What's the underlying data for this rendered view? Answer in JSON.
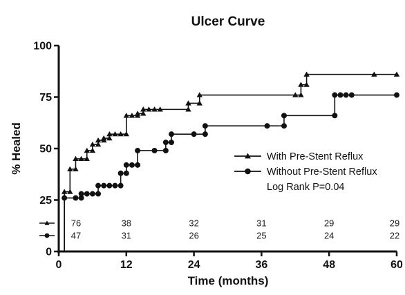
{
  "chart_data": {
    "type": "line",
    "title": "Ulcer Curve",
    "xlabel": "Time (months)",
    "ylabel": "% Healed",
    "xlim": [
      0,
      60
    ],
    "ylim": [
      0,
      100
    ],
    "x_ticks": [
      0,
      12,
      24,
      36,
      48,
      60
    ],
    "y_ticks": [
      0,
      25,
      50,
      75,
      100
    ],
    "grid": false,
    "legend_position": "right",
    "annotation": "Log Rank P=0.04",
    "series": [
      {
        "name": "With Pre-Stent Reflux",
        "marker": "triangle",
        "color": "#111111",
        "points": [
          [
            0,
            0
          ],
          [
            1,
            0
          ],
          [
            1,
            29
          ],
          [
            2,
            29
          ],
          [
            2,
            40
          ],
          [
            3,
            40
          ],
          [
            3,
            45
          ],
          [
            4,
            45
          ],
          [
            5,
            45
          ],
          [
            5,
            49
          ],
          [
            6,
            49
          ],
          [
            6,
            52
          ],
          [
            7,
            52
          ],
          [
            7,
            54
          ],
          [
            8,
            54
          ],
          [
            8,
            55
          ],
          [
            9,
            55
          ],
          [
            9,
            57
          ],
          [
            10,
            57
          ],
          [
            11,
            57
          ],
          [
            12,
            57
          ],
          [
            12,
            66
          ],
          [
            13,
            66
          ],
          [
            14,
            66
          ],
          [
            14,
            67
          ],
          [
            15,
            67
          ],
          [
            15,
            69
          ],
          [
            16,
            69
          ],
          [
            17,
            69
          ],
          [
            18,
            69
          ],
          [
            23,
            69
          ],
          [
            23,
            72
          ],
          [
            25,
            72
          ],
          [
            25,
            76
          ],
          [
            42,
            76
          ],
          [
            43,
            76
          ],
          [
            43,
            81
          ],
          [
            44,
            81
          ],
          [
            44,
            86
          ],
          [
            56,
            86
          ],
          [
            60,
            86
          ]
        ]
      },
      {
        "name": "Without Pre-Stent Reflux",
        "marker": "circle",
        "color": "#111111",
        "points": [
          [
            0,
            0
          ],
          [
            1,
            0
          ],
          [
            1,
            26
          ],
          [
            3,
            26
          ],
          [
            4,
            26
          ],
          [
            4,
            28
          ],
          [
            5,
            28
          ],
          [
            6,
            28
          ],
          [
            7,
            28
          ],
          [
            7,
            32
          ],
          [
            8,
            32
          ],
          [
            9,
            32
          ],
          [
            10,
            32
          ],
          [
            11,
            32
          ],
          [
            11,
            38
          ],
          [
            12,
            38
          ],
          [
            12,
            42
          ],
          [
            13,
            42
          ],
          [
            14,
            42
          ],
          [
            14,
            49
          ],
          [
            17,
            49
          ],
          [
            19,
            49
          ],
          [
            19,
            53
          ],
          [
            20,
            53
          ],
          [
            20,
            57
          ],
          [
            24,
            57
          ],
          [
            26,
            57
          ],
          [
            26,
            61
          ],
          [
            37,
            61
          ],
          [
            40,
            61
          ],
          [
            40,
            66
          ],
          [
            49,
            66
          ],
          [
            49,
            76
          ],
          [
            50,
            76
          ],
          [
            51,
            76
          ],
          [
            52,
            76
          ],
          [
            60,
            76
          ]
        ]
      }
    ],
    "risk_table": {
      "x": [
        0,
        12,
        24,
        36,
        48,
        60
      ],
      "rows": [
        {
          "marker": "triangle",
          "values": [
            "76",
            "38",
            "32",
            "31",
            "29",
            "29"
          ]
        },
        {
          "marker": "circle",
          "values": [
            "47",
            "31",
            "26",
            "25",
            "24",
            "22"
          ]
        }
      ]
    }
  }
}
